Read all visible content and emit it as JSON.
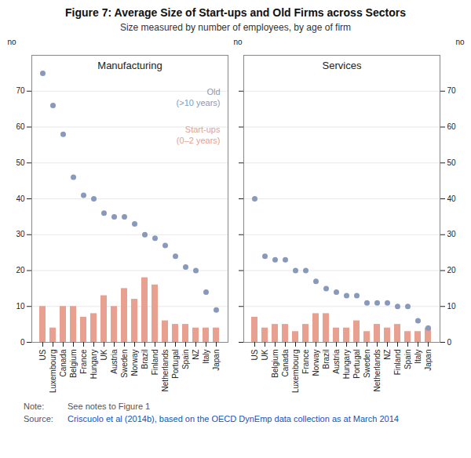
{
  "title": "Figure 7: Average Size of Start-ups and Old Firms across Sectors",
  "subtitle": "Size measured by number of employees, by age of firm",
  "notes": [
    {
      "label": "Note:",
      "text": "See notes to Figure 1"
    },
    {
      "label": "Source:",
      "text": "Criscuolo et al (2014b), based on the OECD DynEmp data collection as at March 2014",
      "color": "#1155BB"
    }
  ],
  "chart_data": [
    {
      "type": "bar",
      "title": "Manufacturing",
      "categories": [
        "US",
        "Luxembourg",
        "Canada",
        "Belgium",
        "France",
        "Hungary",
        "UK",
        "Austria",
        "Sweden",
        "Norway",
        "Brazil",
        "Finland",
        "Netherlands",
        "Portugal",
        "Spain",
        "NZ",
        "Italy",
        "Japan"
      ],
      "series": [
        {
          "name": "Old\n(>10 years)",
          "type": "scatter",
          "marker": "circle",
          "color": "#8899BB",
          "values": [
            75,
            66,
            58,
            46,
            41,
            40,
            36,
            35,
            35,
            33,
            30,
            29,
            27,
            24,
            21,
            20,
            14,
            9
          ]
        },
        {
          "name": "Start-ups\n(0–2 years)",
          "type": "bar",
          "color": "#E8A090",
          "values": [
            10,
            4,
            10,
            10,
            7,
            8,
            13,
            10,
            15,
            12,
            18,
            16,
            6,
            5,
            5,
            4,
            4,
            4
          ]
        }
      ],
      "ylabel": "no",
      "ylim": [
        0,
        80
      ],
      "yticks": [
        0,
        10,
        20,
        30,
        40,
        50,
        60,
        70
      ],
      "grid": true,
      "legend": "upper right"
    },
    {
      "type": "bar",
      "title": "Services",
      "categories": [
        "US",
        "UK",
        "Belgium",
        "Canada",
        "Luxembourg",
        "France",
        "Norway",
        "Brazil",
        "Austria",
        "Hungary",
        "Portugal",
        "Sweden",
        "Netherlands",
        "NZ",
        "Finland",
        "Spain",
        "Italy",
        "Japan"
      ],
      "series": [
        {
          "name": "Old\n(>10 years)",
          "type": "scatter",
          "marker": "circle",
          "color": "#8899BB",
          "values": [
            40,
            24,
            23,
            23,
            20,
            20,
            17,
            15,
            14,
            13,
            13,
            11,
            11,
            11,
            10,
            10,
            6,
            4
          ]
        },
        {
          "name": "Start-ups\n(0–2 years)",
          "type": "bar",
          "color": "#E8A090",
          "values": [
            7,
            4,
            5,
            5,
            3,
            5,
            8,
            8,
            4,
            4,
            6,
            3,
            5,
            4,
            5,
            3,
            3,
            4
          ]
        }
      ],
      "ylabel": "no",
      "ylim": [
        0,
        80
      ],
      "yticks": [
        0,
        10,
        20,
        30,
        40,
        50,
        60,
        70
      ],
      "y2label": "no",
      "y2lim": [
        0,
        80
      ],
      "y2ticks": [
        0,
        10,
        20,
        30,
        40,
        50,
        60,
        70
      ],
      "grid": true
    }
  ]
}
